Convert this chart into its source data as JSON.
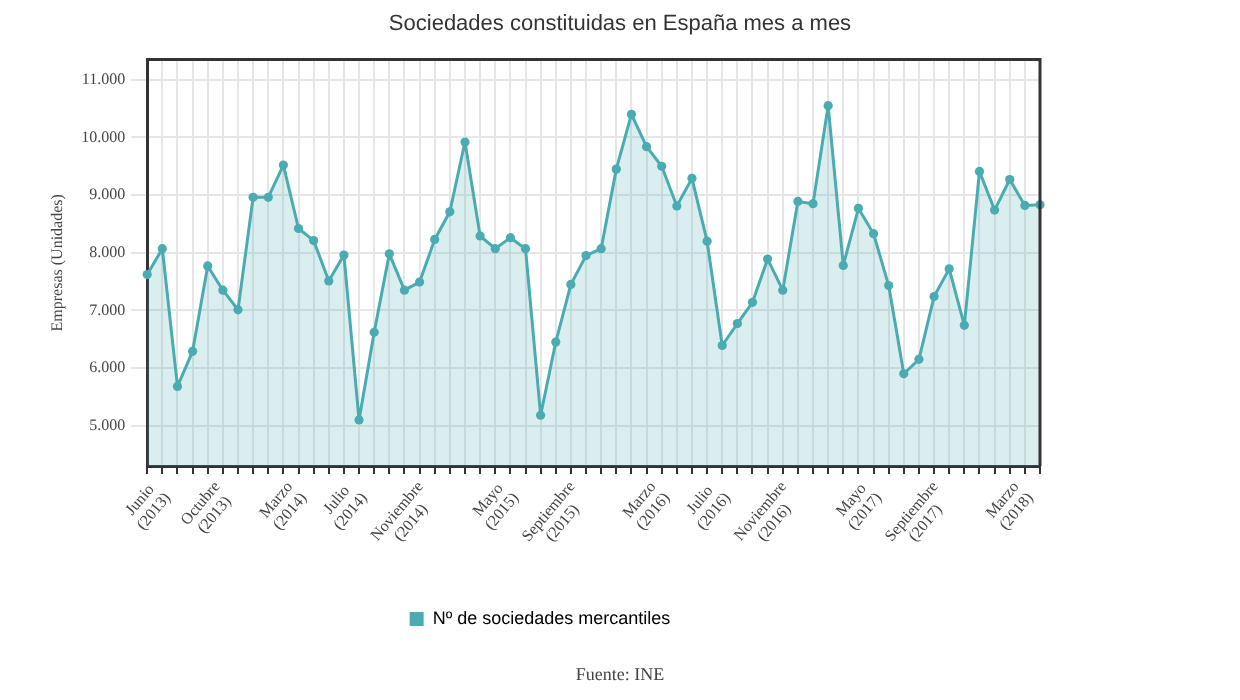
{
  "chart_data": {
    "type": "area",
    "title": "Sociedades constituidas en España mes a mes",
    "ylabel": "Empresas (Unidades)",
    "annotations": [
      "Fuente: INE"
    ],
    "categories": [
      "Junio (2013)",
      null,
      null,
      null,
      "Octubre (2013)",
      null,
      null,
      null,
      null,
      "Marzo (2014)",
      null,
      null,
      null,
      "Julio (2014)",
      null,
      null,
      null,
      "Noviembre (2014)",
      null,
      null,
      null,
      null,
      null,
      "Mayo (2015)",
      null,
      null,
      null,
      "Septiembre (2015)",
      null,
      null,
      null,
      null,
      null,
      "Marzo (2016)",
      null,
      null,
      null,
      "Julio (2016)",
      null,
      null,
      null,
      "Noviembre (2016)",
      null,
      null,
      null,
      null,
      null,
      "Mayo (2017)",
      null,
      null,
      null,
      "Septiembre (2017)",
      null,
      null,
      null,
      null,
      null,
      "Marzo (2018)",
      null,
      null
    ],
    "series": [
      {
        "name": "Nº de sociedades mercantiles",
        "color": "#4aabb0",
        "values": [
          7620,
          8070,
          5680,
          6290,
          7770,
          7350,
          7010,
          8960,
          8960,
          9520,
          8420,
          8210,
          7510,
          7960,
          5100,
          6620,
          7980,
          7350,
          7490,
          8230,
          8710,
          9920,
          8290,
          8070,
          8260,
          8070,
          5180,
          6450,
          7450,
          7950,
          8070,
          9450,
          10400,
          9840,
          9500,
          8810,
          9290,
          8200,
          6390,
          6770,
          7140,
          7890,
          7350,
          8890,
          8850,
          10550,
          7780,
          8770,
          8330,
          7430,
          5900,
          6150,
          7240,
          7720,
          6740,
          9410,
          8740,
          9270,
          8820,
          8830
        ]
      }
    ],
    "ylim": [
      4300,
      11350
    ],
    "yticks": [
      {
        "value": 5000,
        "label": "5.000"
      },
      {
        "value": 6000,
        "label": "6.000"
      },
      {
        "value": 7000,
        "label": "7.000"
      },
      {
        "value": 8000,
        "label": "8.000"
      },
      {
        "value": 9000,
        "label": "9.000"
      },
      {
        "value": 10000,
        "label": "10.000"
      },
      {
        "value": 11000,
        "label": "11.000"
      }
    ],
    "grid": true,
    "legend": "bottom",
    "marker": "circle",
    "line_style": "solid"
  }
}
